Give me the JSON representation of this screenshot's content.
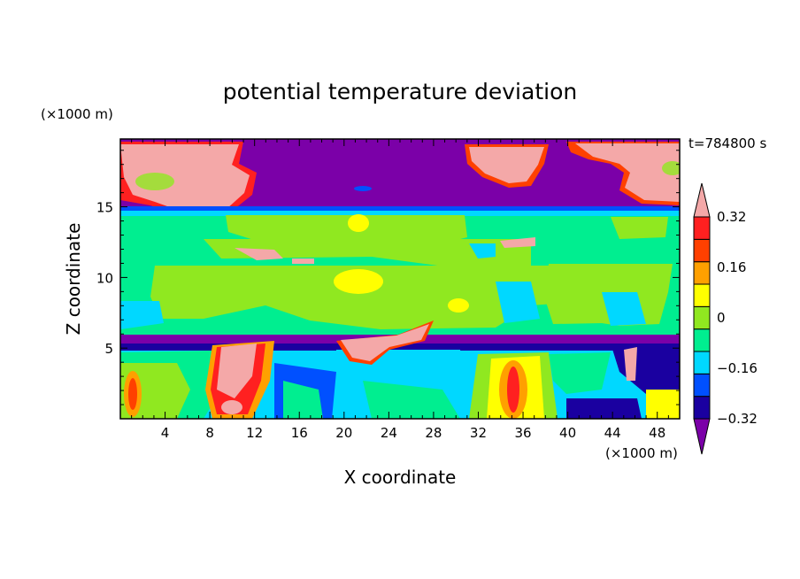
{
  "chart_data": {
    "type": "heatmap",
    "title": "potential temperature deviation",
    "xlabel": "X coordinate",
    "ylabel": "Z coordinate",
    "x_unit": "(×1000 m)",
    "y_unit": "(×1000 m)",
    "time_label": "t=784800 s",
    "xlim": [
      0,
      50
    ],
    "ylim": [
      0,
      19.8
    ],
    "x_ticks": [
      "4",
      "8",
      "12",
      "16",
      "20",
      "24",
      "28",
      "32",
      "36",
      "40",
      "44",
      "48"
    ],
    "y_ticks": [
      "5",
      "10",
      "15"
    ],
    "colorbar": {
      "levels": [
        -0.4,
        -0.32,
        -0.24,
        -0.16,
        -0.08,
        0,
        0.08,
        0.16,
        0.24,
        0.32,
        0.4
      ],
      "labels": [
        "0.32",
        "0.16",
        "0",
        "-0.16",
        "-0.32"
      ],
      "colors": [
        "#7b00a8",
        "#1a00a0",
        "#0050ff",
        "#00d8ff",
        "#00ee90",
        "#90e820",
        "#ffff00",
        "#ffa000",
        "#ff4000",
        "#ff2020",
        "#f4a8a8"
      ],
      "extend": "both"
    },
    "regions": [
      {
        "z": [
          15,
          19.8
        ],
        "value": -0.4
      },
      {
        "z": [
          5.5,
          15
        ],
        "value": 0
      },
      {
        "z": [
          0,
          5.5
        ],
        "value": -0.2
      }
    ]
  }
}
